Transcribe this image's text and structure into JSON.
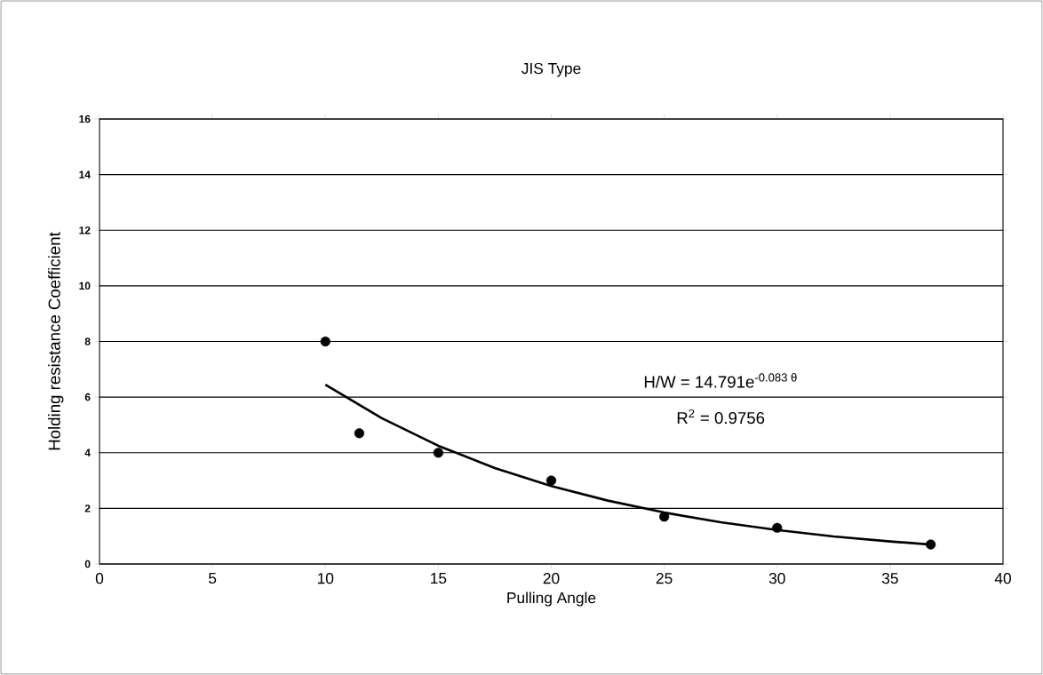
{
  "chart_data": {
    "type": "scatter",
    "title": "JIS Type",
    "xlabel": "Pulling Angle",
    "ylabel": "Holding resistance Coefficient",
    "xlim": [
      0,
      40
    ],
    "xticks": [
      0,
      5,
      10,
      15,
      20,
      25,
      30,
      35,
      40
    ],
    "ylim": [
      0,
      16
    ],
    "yticks": [
      0,
      2,
      4,
      6,
      8,
      10,
      12,
      14,
      16
    ],
    "grid": "y",
    "marker": "circle",
    "series": [
      {
        "color": "#000000",
        "x": [
          10,
          11.5,
          15,
          20,
          25,
          30,
          36.8
        ],
        "values": [
          8.0,
          4.7,
          4.0,
          3.0,
          1.7,
          1.3,
          0.7
        ]
      },
      {
        "type": "line",
        "color": "#000000",
        "marker": "none",
        "x": [
          10,
          12.5,
          15,
          17.5,
          20,
          22.5,
          25,
          27.5,
          30,
          32.5,
          35,
          36.8
        ],
        "values": [
          6.45,
          5.24,
          4.25,
          3.45,
          2.8,
          2.28,
          1.85,
          1.5,
          1.22,
          0.99,
          0.81,
          0.7
        ]
      }
    ],
    "annotations": [
      "H/W = 14.791e$^{-0.083 θ}$",
      "R$^{2}$ = 0.9756"
    ]
  }
}
